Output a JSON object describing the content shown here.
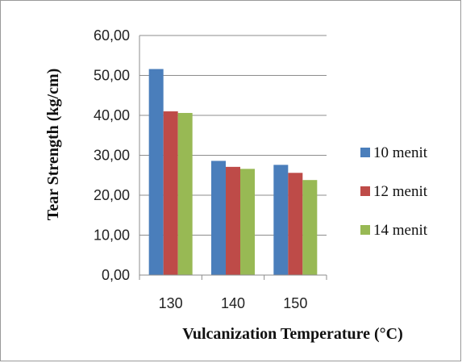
{
  "chart_data": {
    "type": "bar",
    "xlabel": "Vulcanization Temperature (°C)",
    "ylabel": "Tear Strength (kg/cm)",
    "categories": [
      "130",
      "140",
      "150"
    ],
    "series": [
      {
        "name": "10 menit",
        "color": "#4a7ebb",
        "values": [
          51.6,
          28.6,
          27.6
        ]
      },
      {
        "name": "12 menit",
        "color": "#be4b48",
        "values": [
          41.0,
          27.1,
          25.6
        ]
      },
      {
        "name": "14 menit",
        "color": "#98b954",
        "values": [
          40.6,
          26.6,
          23.8
        ]
      }
    ],
    "ylim": [
      0,
      60
    ],
    "yticks": [
      "0,00",
      "10,00",
      "20,00",
      "30,00",
      "40,00",
      "50,00",
      "60,00"
    ],
    "grid": true,
    "legend_position": "right"
  }
}
